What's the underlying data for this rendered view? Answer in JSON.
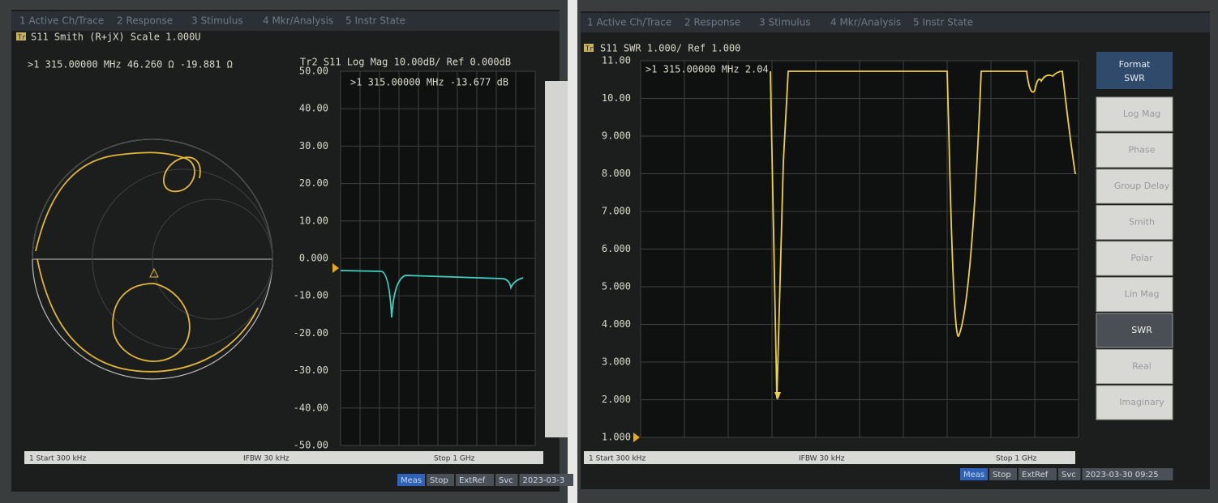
{
  "left": {
    "menu": [
      "1 Active Ch/Trace",
      "2 Response",
      "3 Stimulus",
      "4 Mkr/Analysis",
      "5 Instr State"
    ],
    "trace1_badge": "Tr1",
    "trace1_title": "S11 Smith (R+jX) Scale 1.000U",
    "trace1_marker": ">1  315.00000 MHz  46.260 Ω -19.881 Ω",
    "trace2_title": "Tr2 S11 Log Mag 10.00dB/ Ref 0.000dB",
    "trace2_marker": ">1  315.00000 MHz -13.677 dB",
    "yticks": [
      "50.00",
      "40.00",
      "30.00",
      "20.00",
      "10.00",
      "0.000",
      "-10.00",
      "-20.00",
      "-30.00",
      "-40.00",
      "-50.00"
    ],
    "status_start": "1  Start 300 kHz",
    "status_ifbw": "IFBW 30 kHz",
    "status_stop": "Stop 1 GHz",
    "bottom": [
      "Meas",
      "Stop",
      "ExtRef",
      "Svc",
      "2023-03-3"
    ]
  },
  "right": {
    "menu": [
      "1 Active Ch/Trace",
      "2 Response",
      "3 Stimulus",
      "4 Mkr/Analysis",
      "5 Instr State"
    ],
    "trace_badge": "Tr1",
    "trace_title": "S11 SWR 1.000/ Ref 1.000",
    "trace_marker": ">1  315.00000 MHz  2.04",
    "yticks": [
      "11.00",
      "10.00",
      "9.000",
      "8.000",
      "7.000",
      "6.000",
      "5.000",
      "4.000",
      "3.000",
      "2.000",
      "1.000"
    ],
    "softkey_title": "Format",
    "softkey_current": "SWR",
    "softkeys": [
      "Log Mag",
      "Phase",
      "Group Delay",
      "Smith",
      "Polar",
      "Lin Mag",
      "SWR",
      "Real",
      "Imaginary"
    ],
    "status_start": "1  Start 300 kHz",
    "status_ifbw": "IFBW 30 kHz",
    "status_stop": "Stop 1 GHz",
    "bottom": [
      "Meas",
      "Stop",
      "ExtRef",
      "Svc",
      "2023-03-30 09:25"
    ]
  }
}
